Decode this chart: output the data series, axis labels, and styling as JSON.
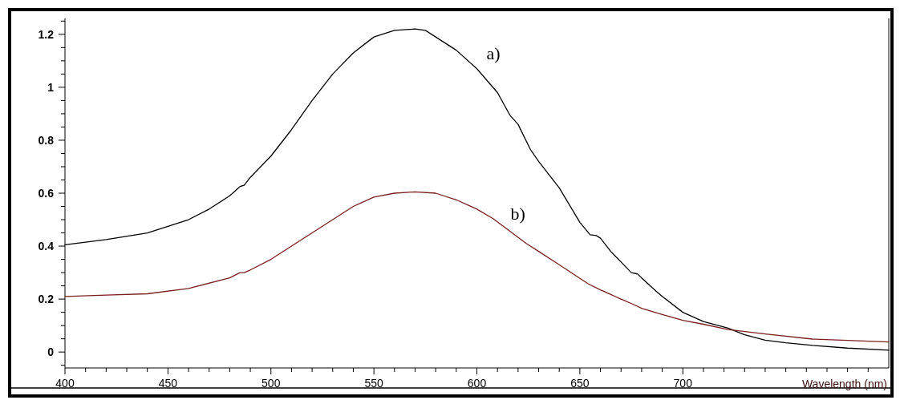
{
  "chart_data": {
    "type": "line",
    "xlabel": "Wavelength (nm)",
    "xlim": [
      400,
      800
    ],
    "ylim": [
      -0.06,
      1.26
    ],
    "xticks": [
      400,
      {
        "value": 410,
        "label": null
      },
      {
        "value": 420,
        "label": null
      },
      {
        "value": 430,
        "label": null
      },
      {
        "value": 440,
        "label": null
      },
      450,
      {
        "value": 460,
        "label": null
      },
      {
        "value": 470,
        "label": null
      },
      {
        "value": 480,
        "label": null
      },
      {
        "value": 490,
        "label": null
      },
      500,
      {
        "value": 510,
        "label": null
      },
      {
        "value": 520,
        "label": null
      },
      {
        "value": 530,
        "label": null
      },
      {
        "value": 540,
        "label": null
      },
      550,
      {
        "value": 560,
        "label": null
      },
      {
        "value": 570,
        "label": null
      },
      {
        "value": 580,
        "label": null
      },
      {
        "value": 590,
        "label": null
      },
      600,
      {
        "value": 610,
        "label": null
      },
      {
        "value": 620,
        "label": null
      },
      {
        "value": 630,
        "label": null
      },
      {
        "value": 640,
        "label": null
      },
      650,
      {
        "value": 660,
        "label": null
      },
      {
        "value": 670,
        "label": null
      },
      {
        "value": 680,
        "label": null
      },
      {
        "value": 690,
        "label": null
      },
      700,
      {
        "value": 710,
        "label": null
      },
      {
        "value": 720,
        "label": null
      },
      {
        "value": 730,
        "label": null
      },
      {
        "value": 740,
        "label": null
      },
      {
        "value": 750,
        "label": null
      },
      {
        "value": 760,
        "label": null
      },
      {
        "value": 770,
        "label": null
      },
      {
        "value": 780,
        "label": null
      },
      {
        "value": 790,
        "label": null
      }
    ],
    "yticks": [
      {
        "value": -0.05,
        "label": null
      },
      0,
      {
        "value": 0.05,
        "label": null
      },
      {
        "value": 0.1,
        "label": null
      },
      {
        "value": 0.15,
        "label": null
      },
      0.2,
      {
        "value": 0.25,
        "label": null
      },
      {
        "value": 0.3,
        "label": null
      },
      {
        "value": 0.35,
        "label": null
      },
      0.4,
      {
        "value": 0.45,
        "label": null
      },
      {
        "value": 0.5,
        "label": null
      },
      {
        "value": 0.55,
        "label": null
      },
      0.6,
      {
        "value": 0.65,
        "label": null
      },
      {
        "value": 0.7,
        "label": null
      },
      {
        "value": 0.75,
        "label": null
      },
      0.8,
      {
        "value": 0.85,
        "label": null
      },
      {
        "value": 0.9,
        "label": null
      },
      {
        "value": 0.95,
        "label": null
      },
      1,
      {
        "value": 1.05,
        "label": null
      },
      {
        "value": 1.1,
        "label": null
      },
      {
        "value": 1.15,
        "label": null
      },
      1.2,
      {
        "value": 1.25,
        "label": null
      }
    ],
    "grid": false,
    "marker": "none",
    "line_style": "solid",
    "series": [
      {
        "name": "a)",
        "color": "#000000",
        "x": [
          400,
          420,
          440,
          460,
          470,
          480,
          485,
          487,
          490,
          500,
          510,
          520,
          530,
          540,
          550,
          560,
          570,
          575,
          580,
          590,
          600,
          610,
          616,
          620,
          626,
          630,
          640,
          650,
          655,
          658,
          660,
          665,
          670,
          675,
          678,
          680,
          687,
          690,
          700,
          710,
          722,
          730,
          740,
          750,
          763,
          780,
          800
        ],
        "values": [
          0.405,
          0.425,
          0.45,
          0.5,
          0.54,
          0.59,
          0.625,
          0.63,
          0.66,
          0.74,
          0.84,
          0.95,
          1.05,
          1.13,
          1.19,
          1.215,
          1.22,
          1.215,
          1.19,
          1.14,
          1.07,
          0.98,
          0.895,
          0.86,
          0.765,
          0.72,
          0.62,
          0.49,
          0.443,
          0.44,
          0.43,
          0.38,
          0.34,
          0.3,
          0.295,
          0.28,
          0.23,
          0.21,
          0.15,
          0.115,
          0.09,
          0.065,
          0.045,
          0.035,
          0.025,
          0.015,
          0.007
        ]
      },
      {
        "name": "b)",
        "color": "#7a1f1f",
        "x": [
          400,
          420,
          440,
          460,
          480,
          485,
          487,
          490,
          500,
          510,
          520,
          530,
          540,
          550,
          560,
          570,
          580,
          590,
          600,
          608,
          624,
          630,
          640,
          654,
          660,
          670,
          676,
          680,
          688,
          700,
          710,
          722,
          740,
          763,
          780,
          800
        ],
        "values": [
          0.21,
          0.215,
          0.22,
          0.24,
          0.28,
          0.3,
          0.3,
          0.31,
          0.35,
          0.4,
          0.45,
          0.5,
          0.55,
          0.585,
          0.6,
          0.605,
          0.6,
          0.575,
          0.54,
          0.503,
          0.41,
          0.38,
          0.33,
          0.258,
          0.235,
          0.2,
          0.18,
          0.165,
          0.146,
          0.12,
          0.105,
          0.085,
          0.068,
          0.049,
          0.044,
          0.038
        ]
      }
    ]
  }
}
